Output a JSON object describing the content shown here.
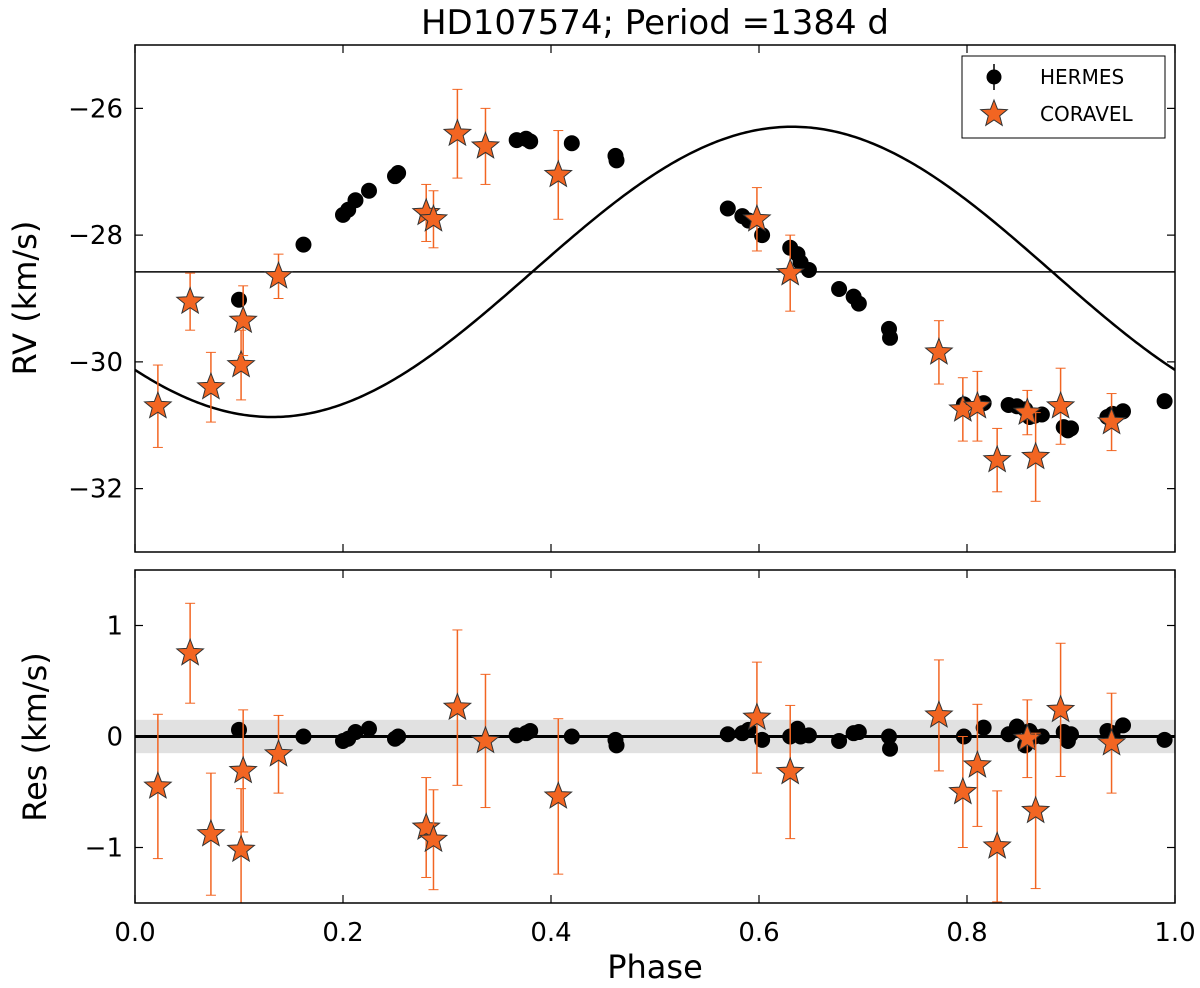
{
  "chart_data": [
    {
      "type": "scatter",
      "panel": "rv",
      "title": "HD107574; Period =1384 d",
      "xlabel": "",
      "ylabel": "RV (km/s)",
      "xlim": [
        0.0,
        1.0
      ],
      "ylim": [
        -33.0,
        -25.0
      ],
      "yticks": [
        -26,
        -28,
        -30,
        -32
      ],
      "ytick_labels": [
        "−26",
        "−28",
        "−30",
        "−32"
      ],
      "xticks": [
        0.0,
        0.2,
        0.4,
        0.6,
        0.8,
        1.0
      ],
      "gamma_line": -28.58,
      "orbit_model": {
        "gamma": -28.58,
        "K": 2.29,
        "phase_shift": 0.132
      },
      "legend": {
        "position": "top-right",
        "entries": [
          "HERMES",
          "CORAVEL"
        ]
      },
      "series": [
        {
          "name": "HERMES",
          "marker": "circle",
          "color": "#000000",
          "x": [
            0.1,
            0.162,
            0.2,
            0.205,
            0.212,
            0.225,
            0.25,
            0.253,
            0.367,
            0.376,
            0.38,
            0.42,
            0.462,
            0.463,
            0.57,
            0.584,
            0.59,
            0.603,
            0.63,
            0.637,
            0.64,
            0.648,
            0.677,
            0.691,
            0.696,
            0.725,
            0.726,
            0.797,
            0.816,
            0.84,
            0.848,
            0.856,
            0.86,
            0.865,
            0.872,
            0.893,
            0.897,
            0.9,
            0.935,
            0.94,
            0.95,
            0.99
          ],
          "y": [
            -29.02,
            -28.15,
            -27.68,
            -27.6,
            -27.45,
            -27.3,
            -27.07,
            -27.02,
            -26.5,
            -26.48,
            -26.52,
            -26.55,
            -26.75,
            -26.82,
            -27.58,
            -27.7,
            -27.77,
            -28.0,
            -28.2,
            -28.3,
            -28.43,
            -28.55,
            -28.85,
            -28.97,
            -29.08,
            -29.48,
            -29.62,
            -30.67,
            -30.65,
            -30.68,
            -30.7,
            -30.75,
            -30.87,
            -30.85,
            -30.83,
            -31.03,
            -31.08,
            -31.05,
            -30.87,
            -30.82,
            -30.78,
            -30.62
          ]
        },
        {
          "name": "CORAVEL",
          "marker": "star",
          "color": "#f26522",
          "x": [
            0.022,
            0.053,
            0.073,
            0.102,
            0.104,
            0.138,
            0.28,
            0.287,
            0.31,
            0.337,
            0.407,
            0.598,
            0.63,
            0.773,
            0.796,
            0.81,
            0.829,
            0.858,
            0.866,
            0.89,
            0.939
          ],
          "y": [
            -30.7,
            -29.05,
            -30.4,
            -30.05,
            -29.35,
            -28.65,
            -27.65,
            -27.75,
            -26.4,
            -26.6,
            -27.05,
            -27.75,
            -28.6,
            -29.85,
            -30.75,
            -30.7,
            -31.55,
            -30.8,
            -31.5,
            -30.7,
            -30.95
          ],
          "err": [
            0.65,
            0.45,
            0.55,
            0.55,
            0.55,
            0.35,
            0.45,
            0.45,
            0.7,
            0.6,
            0.7,
            0.5,
            0.6,
            0.5,
            0.5,
            0.55,
            0.5,
            0.35,
            0.7,
            0.6,
            0.45
          ]
        }
      ]
    },
    {
      "type": "scatter",
      "panel": "residuals",
      "title": "",
      "xlabel": "Phase",
      "ylabel": "Res (km/s)",
      "xlim": [
        0.0,
        1.0
      ],
      "ylim": [
        -1.5,
        1.5
      ],
      "yticks": [
        1,
        0,
        -1
      ],
      "ytick_labels": [
        "1",
        "0",
        "−1"
      ],
      "xticks": [
        0.0,
        0.2,
        0.4,
        0.6,
        0.8,
        1.0
      ],
      "xtick_labels": [
        "0.0",
        "0.2",
        "0.4",
        "0.6",
        "0.8",
        "1.0"
      ],
      "zero_line": 0,
      "shaded_band": [
        -0.15,
        0.15
      ],
      "series": [
        {
          "name": "HERMES",
          "marker": "circle",
          "color": "#000000",
          "x": [
            0.1,
            0.162,
            0.2,
            0.205,
            0.212,
            0.225,
            0.25,
            0.253,
            0.367,
            0.376,
            0.38,
            0.42,
            0.462,
            0.463,
            0.57,
            0.584,
            0.59,
            0.603,
            0.63,
            0.637,
            0.64,
            0.648,
            0.677,
            0.691,
            0.696,
            0.725,
            0.726,
            0.797,
            0.816,
            0.84,
            0.848,
            0.856,
            0.86,
            0.865,
            0.872,
            0.893,
            0.897,
            0.9,
            0.935,
            0.94,
            0.95,
            0.99
          ],
          "y": [
            0.06,
            0.0,
            -0.04,
            -0.02,
            0.04,
            0.07,
            -0.02,
            0.0,
            0.01,
            0.03,
            0.05,
            0.0,
            -0.03,
            -0.08,
            0.02,
            0.03,
            0.06,
            -0.03,
            0.0,
            0.07,
            0.0,
            0.01,
            -0.04,
            0.03,
            0.04,
            0.0,
            -0.11,
            0.0,
            0.08,
            0.02,
            0.09,
            -0.08,
            0.05,
            0.0,
            0.0,
            0.04,
            -0.04,
            0.02,
            0.05,
            0.03,
            0.1,
            -0.03
          ],
          "err": [
            0.02,
            0.03,
            0.03,
            0.03,
            0.03,
            0.03,
            0.03,
            0.03,
            0.03,
            0.03,
            0.03,
            0.03,
            0.03,
            0.03,
            0.03,
            0.03,
            0.03,
            0.03,
            0.03,
            0.03,
            0.03,
            0.03,
            0.03,
            0.03,
            0.03,
            0.03,
            0.05,
            0.03,
            0.03,
            0.03,
            0.03,
            0.03,
            0.03,
            0.03,
            0.03,
            0.03,
            0.03,
            0.03,
            0.03,
            0.03,
            0.03,
            0.03
          ]
        },
        {
          "name": "CORAVEL",
          "marker": "star",
          "color": "#f26522",
          "x": [
            0.022,
            0.053,
            0.073,
            0.102,
            0.104,
            0.138,
            0.28,
            0.287,
            0.31,
            0.337,
            0.407,
            0.598,
            0.63,
            0.773,
            0.796,
            0.81,
            0.829,
            0.858,
            0.866,
            0.89,
            0.939
          ],
          "y": [
            -0.45,
            0.75,
            -0.88,
            -1.02,
            -0.31,
            -0.16,
            -0.82,
            -0.93,
            0.26,
            -0.04,
            -0.54,
            0.17,
            -0.32,
            0.19,
            -0.5,
            -0.26,
            -0.99,
            -0.02,
            -0.67,
            0.24,
            -0.06
          ],
          "err": [
            0.65,
            0.45,
            0.55,
            0.55,
            0.55,
            0.35,
            0.45,
            0.45,
            0.7,
            0.6,
            0.7,
            0.5,
            0.6,
            0.5,
            0.5,
            0.55,
            0.5,
            0.35,
            0.7,
            0.6,
            0.45
          ]
        }
      ]
    }
  ]
}
